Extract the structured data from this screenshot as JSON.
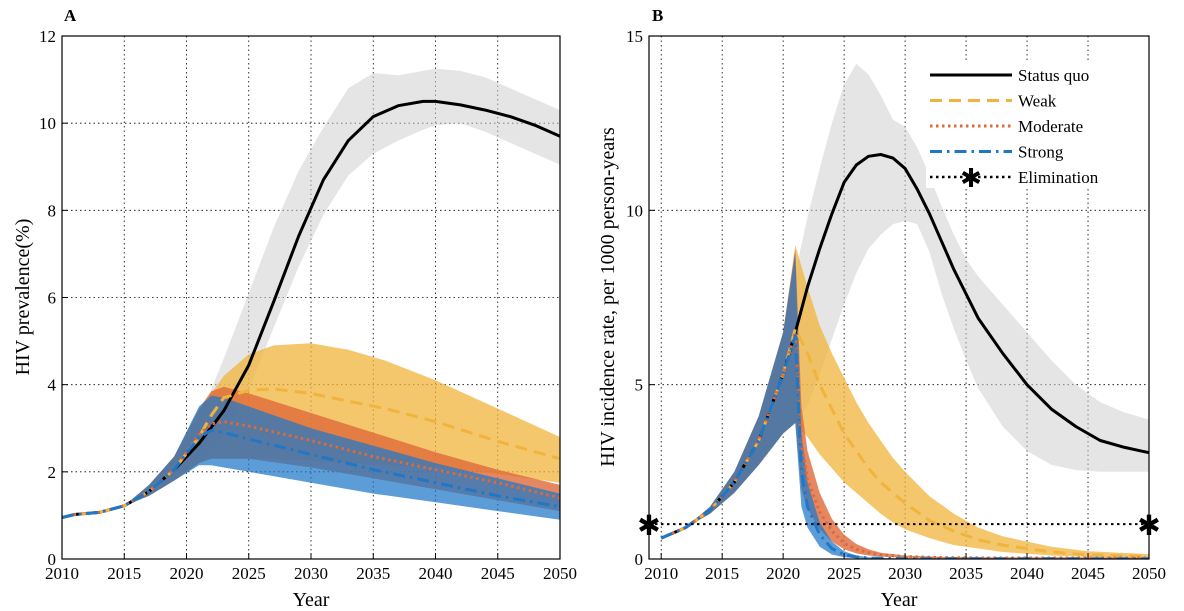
{
  "chart_data": [
    {
      "type": "line",
      "panel_label": "A",
      "xlabel": "Year",
      "ylabel": "HIV prevalence(%)",
      "xlim": [
        2010,
        2050
      ],
      "ylim": [
        0,
        12
      ],
      "x_ticks": [
        2010,
        2015,
        2020,
        2025,
        2030,
        2035,
        2040,
        2045,
        2050
      ],
      "y_ticks": [
        0,
        2,
        4,
        6,
        8,
        10,
        12
      ],
      "grid": "dotted",
      "legend": "none",
      "series": [
        {
          "name": "Status quo",
          "color": "#000000",
          "dash": "solid",
          "x": [
            2010,
            2011,
            2013,
            2015,
            2017,
            2019,
            2021,
            2023,
            2025,
            2027,
            2029,
            2031,
            2033,
            2035,
            2037,
            2039,
            2040,
            2042,
            2044,
            2046,
            2048,
            2050
          ],
          "y": [
            0.95,
            1.02,
            1.07,
            1.22,
            1.55,
            2.05,
            2.65,
            3.4,
            4.45,
            5.9,
            7.4,
            8.7,
            9.6,
            10.15,
            10.4,
            10.5,
            10.5,
            10.42,
            10.3,
            10.15,
            9.95,
            9.7
          ],
          "band_lower": [
            0.95,
            1.02,
            1.07,
            1.22,
            1.45,
            1.8,
            2.2,
            2.8,
            3.9,
            5.3,
            6.7,
            7.9,
            8.8,
            9.3,
            9.6,
            9.85,
            9.95,
            10.0,
            9.8,
            9.55,
            9.3,
            9.05
          ],
          "band_upper": [
            0.95,
            1.02,
            1.07,
            1.22,
            1.7,
            2.35,
            3.2,
            4.6,
            6.1,
            7.6,
            8.9,
            9.9,
            10.8,
            11.15,
            11.1,
            11.2,
            11.25,
            11.2,
            11.05,
            10.8,
            10.55,
            10.3
          ]
        },
        {
          "name": "Weak",
          "color": "#f0b43c",
          "dash": "dashed",
          "x": [
            2010,
            2011,
            2013,
            2015,
            2017,
            2019,
            2021,
            2022,
            2023,
            2025,
            2027,
            2030,
            2033,
            2036,
            2040,
            2045,
            2050
          ],
          "y": [
            0.95,
            1.02,
            1.07,
            1.22,
            1.55,
            2.05,
            2.8,
            3.3,
            3.7,
            3.87,
            3.9,
            3.8,
            3.62,
            3.45,
            3.15,
            2.7,
            2.3
          ],
          "band_lower": [
            0.95,
            1.02,
            1.07,
            1.22,
            1.45,
            1.8,
            2.2,
            2.3,
            2.3,
            2.3,
            2.3,
            2.25,
            2.2,
            2.15,
            2.1,
            1.95,
            1.75
          ],
          "band_upper": [
            0.95,
            1.02,
            1.07,
            1.22,
            1.7,
            2.35,
            3.4,
            3.8,
            4.2,
            4.7,
            4.9,
            4.95,
            4.8,
            4.55,
            4.1,
            3.45,
            2.8
          ]
        },
        {
          "name": "Moderate",
          "color": "#de6a3a",
          "dash": "dotted",
          "x": [
            2010,
            2011,
            2013,
            2015,
            2017,
            2019,
            2021,
            2022,
            2023,
            2025,
            2030,
            2035,
            2040,
            2045,
            2050
          ],
          "y": [
            0.95,
            1.02,
            1.07,
            1.22,
            1.55,
            2.05,
            2.85,
            3.1,
            3.15,
            3.05,
            2.72,
            2.35,
            2.05,
            1.75,
            1.4
          ],
          "band_lower": [
            0.95,
            1.02,
            1.07,
            1.22,
            1.45,
            1.8,
            2.2,
            2.3,
            2.3,
            2.3,
            2.1,
            1.85,
            1.6,
            1.35,
            1.1
          ],
          "band_upper": [
            0.95,
            1.02,
            1.07,
            1.22,
            1.7,
            2.35,
            3.45,
            3.85,
            3.95,
            3.8,
            3.35,
            2.9,
            2.45,
            2.05,
            1.7
          ]
        },
        {
          "name": "Strong",
          "color": "#1f77c8",
          "dash": "dashdot",
          "x": [
            2010,
            2011,
            2013,
            2015,
            2017,
            2019,
            2021,
            2022,
            2023,
            2025,
            2030,
            2035,
            2040,
            2045,
            2050
          ],
          "y": [
            0.95,
            1.02,
            1.07,
            1.22,
            1.55,
            2.05,
            2.8,
            2.95,
            2.9,
            2.75,
            2.4,
            2.05,
            1.75,
            1.45,
            1.2
          ],
          "band_lower": [
            0.95,
            1.02,
            1.07,
            1.22,
            1.45,
            1.8,
            2.15,
            2.15,
            2.1,
            2.0,
            1.75,
            1.5,
            1.3,
            1.1,
            0.9
          ],
          "band_upper": [
            0.95,
            1.02,
            1.07,
            1.22,
            1.7,
            2.35,
            3.5,
            3.75,
            3.7,
            3.5,
            3.0,
            2.6,
            2.2,
            1.85,
            1.5
          ]
        }
      ]
    },
    {
      "type": "line",
      "panel_label": "B",
      "xlabel": "Year",
      "ylabel": "HIV incidence rate, per 1000 person-years",
      "xlim": [
        2009,
        2050
      ],
      "ylim": [
        0,
        15
      ],
      "x_ticks": [
        2010,
        2015,
        2020,
        2025,
        2030,
        2035,
        2040,
        2045,
        2050
      ],
      "y_ticks": [
        0,
        5,
        10,
        15
      ],
      "grid": "dotted",
      "legend": "top-right",
      "series": [
        {
          "name": "Status quo",
          "color": "#000000",
          "dash": "solid",
          "x": [
            2010,
            2012,
            2014,
            2016,
            2018,
            2020,
            2021,
            2022,
            2023,
            2024,
            2025,
            2026,
            2027,
            2028,
            2029,
            2030,
            2031,
            2032,
            2033,
            2034,
            2035,
            2036,
            2038,
            2040,
            2042,
            2044,
            2046,
            2048,
            2050
          ],
          "y": [
            0.6,
            0.9,
            1.4,
            2.2,
            3.4,
            5.3,
            6.5,
            7.8,
            8.9,
            9.9,
            10.8,
            11.3,
            11.55,
            11.6,
            11.5,
            11.2,
            10.6,
            9.9,
            9.1,
            8.3,
            7.6,
            6.9,
            5.9,
            5.0,
            4.3,
            3.8,
            3.4,
            3.2,
            3.05
          ],
          "band_lower": [
            0.6,
            0.9,
            1.3,
            1.9,
            2.7,
            3.6,
            3.9,
            4.4,
            5.3,
            6.3,
            7.3,
            8.2,
            8.9,
            9.3,
            9.6,
            9.7,
            9.6,
            8.8,
            7.6,
            6.6,
            5.7,
            4.9,
            3.8,
            3.1,
            2.7,
            2.55,
            2.5,
            2.5,
            2.5
          ],
          "band_upper": [
            0.6,
            0.9,
            1.5,
            2.5,
            4.1,
            6.5,
            8.2,
            9.8,
            11.2,
            12.5,
            13.6,
            14.2,
            13.9,
            13.3,
            12.6,
            12.4,
            11.8,
            11.0,
            10.1,
            9.3,
            8.6,
            8.1,
            7.3,
            6.5,
            5.7,
            5.0,
            4.5,
            4.2,
            4.0
          ]
        },
        {
          "name": "Weak",
          "color": "#f0b43c",
          "dash": "dashed",
          "x": [
            2010,
            2012,
            2014,
            2016,
            2018,
            2020,
            2021,
            2022,
            2023,
            2024,
            2025,
            2026,
            2027,
            2028,
            2029,
            2030,
            2032,
            2034,
            2036,
            2038,
            2040,
            2042,
            2045,
            2050
          ],
          "y": [
            0.6,
            0.9,
            1.4,
            2.2,
            3.4,
            5.3,
            6.6,
            5.9,
            5.0,
            4.3,
            3.6,
            3.1,
            2.6,
            2.2,
            1.9,
            1.6,
            1.1,
            0.8,
            0.55,
            0.4,
            0.3,
            0.2,
            0.12,
            0.08
          ],
          "band_lower": [
            0.6,
            0.9,
            1.3,
            1.9,
            2.7,
            3.6,
            3.9,
            3.5,
            3.0,
            2.6,
            2.2,
            1.9,
            1.6,
            1.3,
            1.05,
            0.85,
            0.6,
            0.4,
            0.3,
            0.2,
            0.15,
            0.1,
            0.06,
            0.04
          ],
          "band_upper": [
            0.6,
            0.9,
            1.5,
            2.5,
            4.1,
            6.5,
            9.0,
            7.8,
            6.7,
            5.9,
            5.2,
            4.5,
            3.9,
            3.4,
            2.9,
            2.5,
            1.8,
            1.3,
            0.9,
            0.65,
            0.5,
            0.35,
            0.22,
            0.14
          ]
        },
        {
          "name": "Moderate",
          "color": "#de6a3a",
          "dash": "dotted",
          "x": [
            2010,
            2012,
            2014,
            2016,
            2018,
            2020,
            2021,
            2021.5,
            2022,
            2023,
            2024,
            2025,
            2026,
            2027,
            2028,
            2030,
            2033,
            2037,
            2040,
            2050
          ],
          "y": [
            0.6,
            0.9,
            1.4,
            2.2,
            3.4,
            5.3,
            6.5,
            3.3,
            2.3,
            1.35,
            0.8,
            0.45,
            0.28,
            0.18,
            0.12,
            0.07,
            0.04,
            0.03,
            0.03,
            0.03
          ],
          "band_lower": [
            0.6,
            0.9,
            1.3,
            1.9,
            2.7,
            3.6,
            3.9,
            2.0,
            1.45,
            0.85,
            0.5,
            0.28,
            0.16,
            0.1,
            0.07,
            0.04,
            0.02,
            0.01,
            0.01,
            0.01
          ],
          "band_upper": [
            0.6,
            0.9,
            1.5,
            2.5,
            4.1,
            6.5,
            8.9,
            4.4,
            3.1,
            1.9,
            1.15,
            0.7,
            0.43,
            0.28,
            0.18,
            0.1,
            0.06,
            0.05,
            0.05,
            0.05
          ]
        },
        {
          "name": "Strong",
          "color": "#1f77c8",
          "dash": "dashdot",
          "x": [
            2010,
            2012,
            2014,
            2016,
            2018,
            2020,
            2021,
            2021.5,
            2022,
            2023,
            2024,
            2025,
            2026,
            2027,
            2028,
            2030,
            2035,
            2040,
            2050
          ],
          "y": [
            0.6,
            0.9,
            1.4,
            2.2,
            3.4,
            5.3,
            6.4,
            2.5,
            1.5,
            0.7,
            0.3,
            0.12,
            0.06,
            0.03,
            0.02,
            0.01,
            0.01,
            0.01,
            0.01
          ],
          "band_lower": [
            0.6,
            0.9,
            1.3,
            1.9,
            2.7,
            3.6,
            3.9,
            1.5,
            0.9,
            0.35,
            0.13,
            0.05,
            0.02,
            0.01,
            0.01,
            0.0,
            0.0,
            0.0,
            0.0
          ],
          "band_upper": [
            0.6,
            0.9,
            1.5,
            2.5,
            4.1,
            6.5,
            8.8,
            3.6,
            2.2,
            1.05,
            0.5,
            0.22,
            0.1,
            0.05,
            0.03,
            0.02,
            0.02,
            0.02,
            0.02
          ]
        },
        {
          "name": "Elimination",
          "color": "#000000",
          "dash": "dotted",
          "marker": "asterisk",
          "x": [
            2009,
            2050
          ],
          "y": [
            1,
            1
          ]
        }
      ]
    }
  ]
}
